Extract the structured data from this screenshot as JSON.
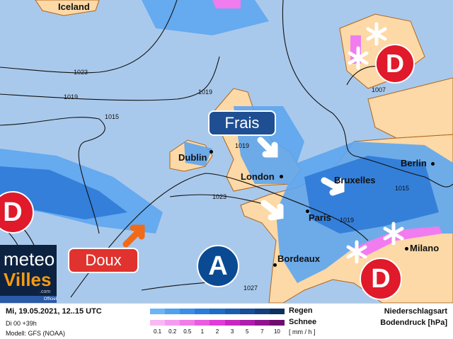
{
  "map": {
    "countries": [
      "Iceland"
    ],
    "cities": [
      "Dublin",
      "London",
      "Bruxelles",
      "Berlin",
      "Paris",
      "Bordeaux",
      "Milano"
    ],
    "isobars": [
      "1023",
      "1019",
      "1015",
      "1019",
      "1019",
      "1023",
      "1019",
      "1015",
      "1007",
      "1027"
    ],
    "labels": {
      "cold": "Frais",
      "warm": "Doux"
    },
    "pressure_centers": {
      "low": "D",
      "high": "A"
    },
    "colors": {
      "sea": "#a9c9ec",
      "land": "#fcd9a6",
      "rain_light": "#5ea6f0",
      "rain_heavy": "#2a78d6",
      "snow": "#f07cf0",
      "low": "#e0192b",
      "high": "#0a4a92",
      "frais": "#1f4f92",
      "doux": "#e0322e",
      "arrow_warm": "#f06a1a"
    }
  },
  "logo": {
    "line1": "meteo",
    "line2": "Villes",
    "suffix": ".com",
    "tag": "Officiel"
  },
  "legend": {
    "date": "Mi, 19.05.2021, 12..15 UTC",
    "run": "Di 00 +39h",
    "model": "Modell: GFS (NOAA)",
    "rain": "Regen",
    "snow": "Schnee",
    "unit": "[ mm / h ]",
    "ticks": [
      "0.1",
      "0.2",
      "0.5",
      "1",
      "2",
      "3",
      "5",
      "7",
      "10"
    ],
    "rain_colors": [
      "#6cb4f8",
      "#4ea2f0",
      "#3a8ee8",
      "#2a7cdc",
      "#1e6cc8",
      "#1a5cb0",
      "#164e98",
      "#12407e",
      "#0e3060"
    ],
    "snow_colors": [
      "#f8b8f4",
      "#f49cf0",
      "#f07ce8",
      "#e85ce0",
      "#e03cd8",
      "#c828c0",
      "#b01cac",
      "#901490",
      "#700c70"
    ],
    "title1": "Niederschlagsart",
    "title2": "Bodendruck [hPa]"
  }
}
